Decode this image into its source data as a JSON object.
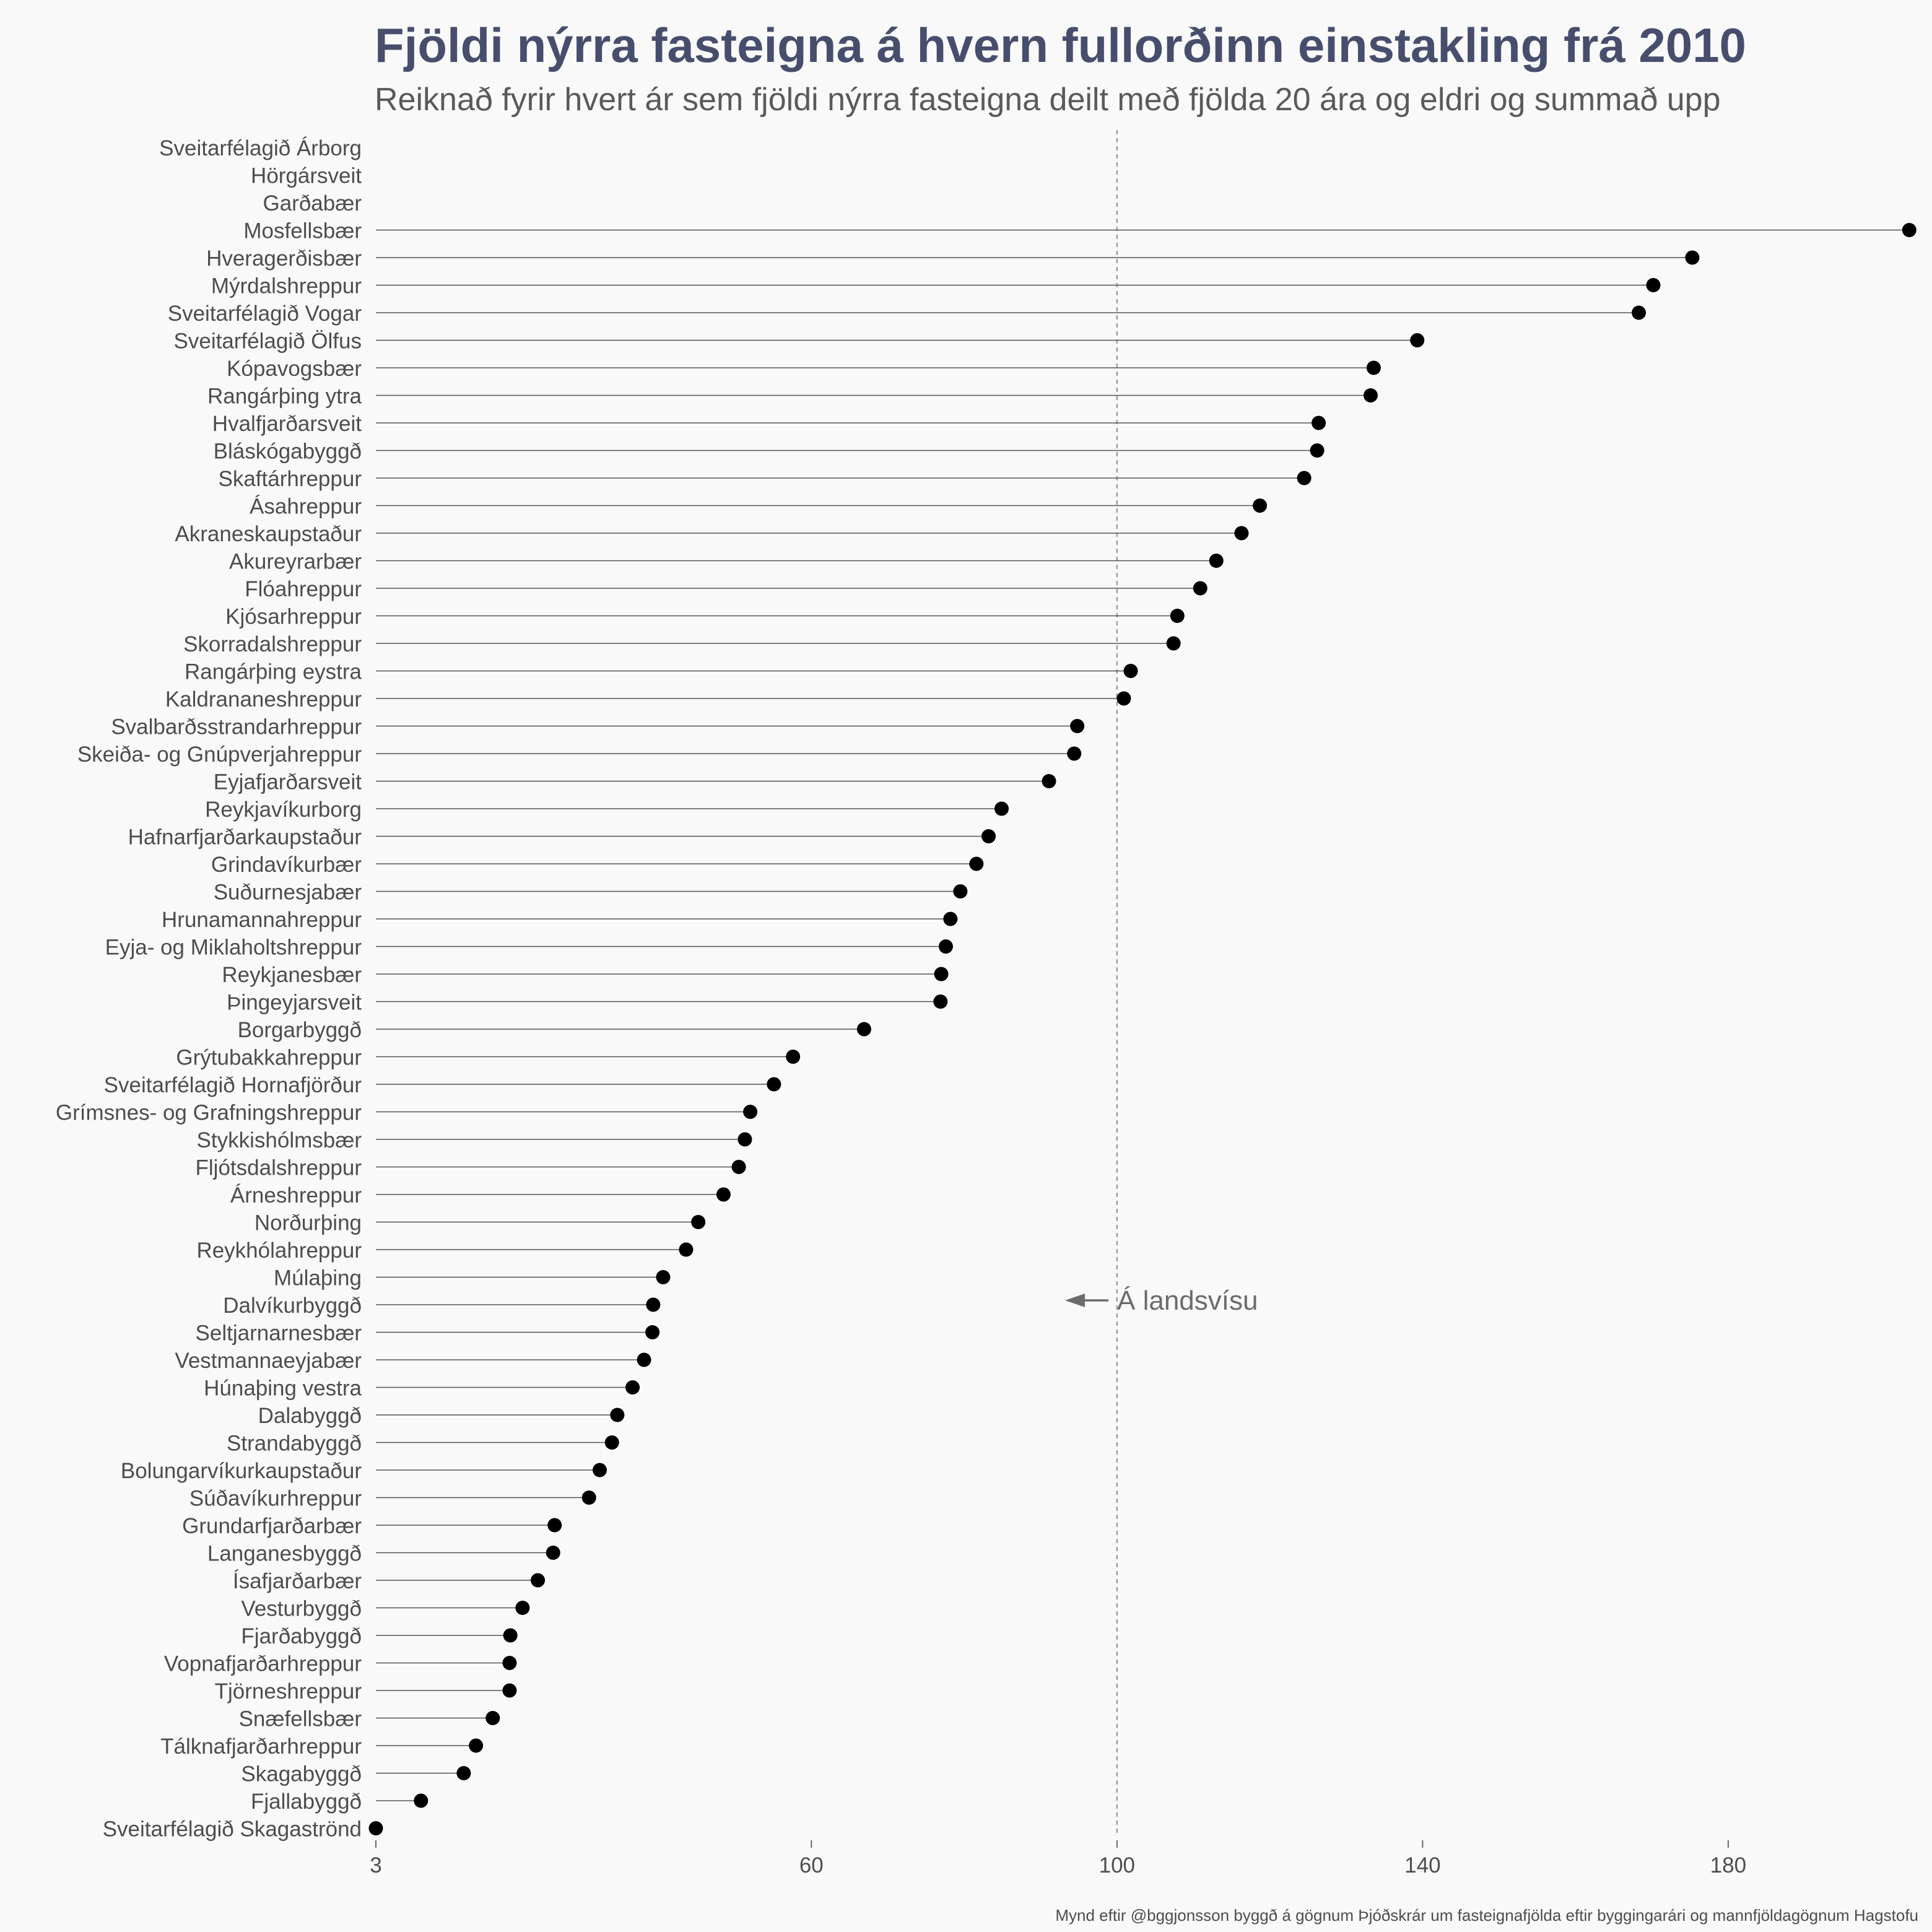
{
  "chart_data": {
    "type": "lollipop",
    "title": "Fjöldi nýrra fasteigna á hvern fullorðinn einstakling frá 2010",
    "subtitle": "Reiknað fyrir hvert ár sem fjöldi nýrra fasteigna deilt með fjölda 20 ára og eldri og summað upp",
    "caption": "Mynd eftir @bggjonsson byggð á gögnum Þjóðskrár um fasteignafjölda eftir byggingarári og mannfjöldagögnum Hagstofu",
    "xlabel": "",
    "ylabel": "",
    "xticks": [
      3,
      60,
      100,
      140,
      180
    ],
    "xlim": [
      3,
      204
    ],
    "reference_line": {
      "value": 100,
      "label": "Á landsvísu",
      "style": "dashed"
    },
    "grid": false,
    "categories": [
      "Sveitarfélagið Árborg",
      "Hörgársveit",
      "Garðabær",
      "Mosfellsbær",
      "Hveragerðisbær",
      "Mýrdalshreppur",
      "Sveitarfélagið Vogar",
      "Sveitarfélagið Ölfus",
      "Kópavogsbær",
      "Rangárþing ytra",
      "Hvalfjarðarsveit",
      "Bláskógabyggð",
      "Skaftárhreppur",
      "Ásahreppur",
      "Akraneskaupstaður",
      "Akureyrarbær",
      "Flóahreppur",
      "Kjósarhreppur",
      "Skorradalshreppur",
      "Rangárþing eystra",
      "Kaldrananeshreppur",
      "Svalbarðsstrandarhreppur",
      "Skeiða- og Gnúpverjahreppur",
      "Eyjafjarðarsveit",
      "Reykjavíkurborg",
      "Hafnarfjarðarkaupstaður",
      "Grindavíkurbær",
      "Suðurnesjabær",
      "Hrunamannahreppur",
      "Eyja- og Miklaholtshreppur",
      "Reykjanesbær",
      "Þingeyjarsveit",
      "Borgarbyggð",
      "Grýtubakkahreppur",
      "Sveitarfélagið Hornafjörður",
      "Grímsnes- og Grafningshreppur",
      "Stykkishólmsbær",
      "Fljótsdalshreppur",
      "Árneshreppur",
      "Norðurþing",
      "Reykhólahreppur",
      "Múlaþing",
      "Dalvíkurbyggð",
      "Seltjarnarnesbær",
      "Vestmannaeyjabær",
      "Húnaþing vestra",
      "Dalabyggð",
      "Strandabyggð",
      "Bolungarvíkurkaupstaður",
      "Súðavíkurhreppur",
      "Grundarfjarðarbær",
      "Langanesbyggð",
      "Ísafjarðarbær",
      "Vesturbyggð",
      "Fjarðabyggð",
      "Vopnafjarðarhreppur",
      "Tjörneshreppur",
      "Snæfellsbær",
      "Tálknafjarðarhreppur",
      "Skagabyggð",
      "Fjallabyggð",
      "Sveitarfélagið Skagaströnd"
    ],
    "values": [
      null,
      null,
      null,
      203.7,
      175.3,
      170.2,
      168.3,
      139.3,
      133.6,
      133.2,
      126.4,
      126.2,
      124.5,
      118.7,
      116.3,
      113.0,
      110.9,
      107.9,
      107.4,
      101.8,
      100.9,
      94.8,
      94.4,
      91.1,
      84.9,
      83.2,
      81.6,
      79.5,
      78.2,
      77.6,
      77.0,
      76.9,
      66.9,
      57.6,
      55.1,
      52.0,
      51.3,
      50.5,
      48.5,
      45.2,
      43.6,
      40.6,
      39.3,
      39.2,
      38.1,
      36.6,
      34.6,
      33.9,
      32.3,
      30.9,
      26.4,
      26.2,
      24.2,
      22.2,
      20.6,
      20.5,
      20.5,
      18.3,
      16.1,
      14.5,
      8.9,
      3.0
    ]
  }
}
